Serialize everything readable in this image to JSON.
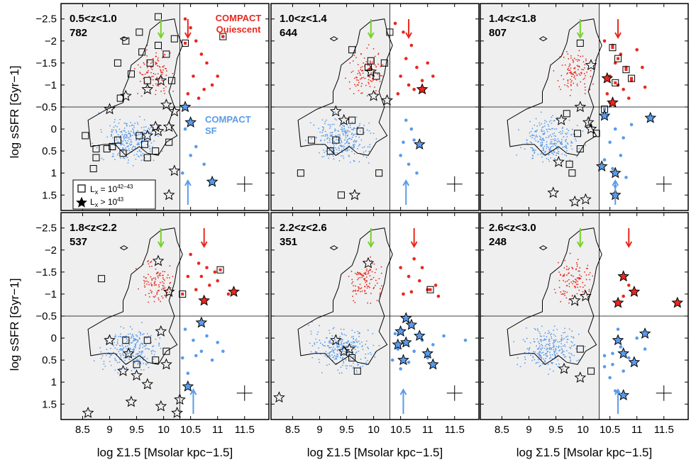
{
  "chart_data": {
    "type": "scatter",
    "xlabel": "log Σ1.5 [Msolar kpc−1.5]",
    "ylabel": "log sSFR [Gyr−1]",
    "xlim": [
      8.1,
      11.95
    ],
    "ylim": [
      -2.85,
      1.85
    ],
    "y_inverted": true,
    "x_ticks": [
      8.5,
      9,
      9.5,
      10,
      10.5,
      11,
      11.5
    ],
    "x_tick_labels": [
      "8.5",
      "9",
      "9.5",
      "10",
      "10.5",
      "11",
      "11.5"
    ],
    "y_ticks": [
      -2.5,
      -2,
      -1.5,
      -1,
      -0.5,
      0,
      0.5,
      1,
      1.5
    ],
    "y_tick_labels": [
      "−2.5",
      "−2",
      "−1.5",
      "−1",
      "−0.5",
      "0",
      "0.5",
      "1",
      "1.5"
    ],
    "compact_threshold_x": 10.3,
    "sf_threshold_y": -0.5,
    "colors": {
      "quiescent": "#e8281e",
      "sf": "#5a9bea",
      "green_arrow": "#7ad12a",
      "shade": "#efefef"
    },
    "annotations": {
      "quiescent_line1": "COMPACT",
      "quiescent_line2": "Quiescent",
      "sf_line1": "COMPACT",
      "sf_line2": "SF"
    },
    "legend": {
      "square_label": "L",
      "square_sub": "x",
      "square_value": " = 10",
      "square_exp": "42–43",
      "star_label": "L",
      "star_sub": "x",
      "star_value": " > 10",
      "star_exp": "43"
    },
    "panels": [
      {
        "z": "0.5<z<1.0",
        "n": "782",
        "green_arrow_x": 9.95,
        "red_arrow_x": 10.45,
        "blue_arrow_x": 10.45,
        "quiescent": [
          [
            10.4,
            -2.5
          ],
          [
            10.5,
            -2.3
          ],
          [
            10.6,
            -2.0
          ],
          [
            10.7,
            -1.7
          ],
          [
            10.8,
            -1.5
          ],
          [
            10.55,
            -1.2
          ],
          [
            10.9,
            -1.0
          ],
          [
            11.1,
            -2.1
          ],
          [
            10.45,
            -0.8
          ],
          [
            10.65,
            -0.7
          ],
          [
            10.75,
            -0.9
          ],
          [
            11.0,
            -1.2
          ]
        ],
        "sf": [
          [
            10.4,
            0.0
          ],
          [
            10.5,
            -0.2
          ],
          [
            10.6,
            0.4
          ],
          [
            10.75,
            0.8
          ],
          [
            10.35,
            1.0
          ],
          [
            10.5,
            0.6
          ]
        ],
        "squares": [
          [
            9.9,
            -2.55
          ],
          [
            9.55,
            -2.2
          ],
          [
            9.3,
            -2.0
          ],
          [
            9.6,
            -1.75
          ],
          [
            9.15,
            -1.5
          ],
          [
            9.75,
            -1.5
          ],
          [
            9.4,
            -1.25
          ],
          [
            10.2,
            -2.05
          ],
          [
            10.4,
            -1.95
          ],
          [
            9.9,
            -1.9
          ],
          [
            10.05,
            -1.7
          ],
          [
            9.7,
            -1.1
          ],
          [
            10.15,
            -1.1
          ],
          [
            9.2,
            -0.7
          ],
          [
            8.55,
            0.15
          ],
          [
            9.55,
            0.15
          ],
          [
            9.15,
            0.25
          ],
          [
            9.65,
            0.35
          ],
          [
            9.05,
            0.4
          ],
          [
            8.95,
            0.45
          ],
          [
            8.75,
            0.45
          ],
          [
            9.85,
            0.5
          ],
          [
            9.7,
            0.65
          ],
          [
            8.75,
            0.65
          ],
          [
            10.1,
            0.3
          ],
          [
            11.1,
            -2.1
          ],
          [
            8.7,
            0.9
          ],
          [
            9.25,
            0.55
          ]
        ],
        "stars": [
          [
            9.3,
            -0.75
          ],
          [
            9.7,
            -0.9
          ],
          [
            9.95,
            -1.1
          ],
          [
            10.05,
            -0.55
          ],
          [
            10.2,
            -0.4
          ],
          [
            10.4,
            -0.5
          ],
          [
            9.85,
            -0.05
          ],
          [
            10.1,
            -0.05
          ],
          [
            9.9,
            0.05
          ],
          [
            9.7,
            0.15
          ],
          [
            10.5,
            -0.15
          ],
          [
            10.2,
            0.95
          ],
          [
            10.1,
            1.5
          ],
          [
            10.9,
            1.2
          ],
          [
            9.0,
            -0.45
          ]
        ]
      },
      {
        "z": "1.0<z<1.4",
        "n": "644",
        "green_arrow_x": 9.95,
        "red_arrow_x": 10.65,
        "blue_arrow_x": 10.6,
        "quiescent": [
          [
            10.4,
            -2.4
          ],
          [
            10.55,
            -2.2
          ],
          [
            10.7,
            -1.9
          ],
          [
            10.6,
            -1.6
          ],
          [
            10.8,
            -1.4
          ],
          [
            10.5,
            -1.2
          ],
          [
            10.9,
            -1.1
          ],
          [
            11.1,
            -1.2
          ],
          [
            10.75,
            -0.9
          ],
          [
            10.45,
            -0.8
          ],
          [
            10.65,
            -1.0
          ],
          [
            11.0,
            -1.5
          ]
        ],
        "sf": [
          [
            10.6,
            -0.2
          ],
          [
            10.7,
            0.0
          ],
          [
            10.55,
            0.3
          ],
          [
            10.65,
            0.8
          ],
          [
            10.8,
            1.0
          ],
          [
            10.5,
            0.6
          ],
          [
            10.75,
            0.25
          ]
        ],
        "squares": [
          [
            9.9,
            -1.4
          ],
          [
            10.3,
            -2.2
          ],
          [
            9.6,
            -1.8
          ],
          [
            10.05,
            -1.2
          ],
          [
            10.2,
            -1.5
          ],
          [
            9.95,
            -1.55
          ],
          [
            9.6,
            -0.2
          ],
          [
            9.3,
            0.25
          ],
          [
            8.85,
            0.25
          ],
          [
            8.65,
            1.0
          ],
          [
            9.75,
            0.05
          ],
          [
            9.2,
            0.5
          ],
          [
            10.1,
            1.0
          ],
          [
            9.4,
            1.5
          ]
        ],
        "stars": [
          [
            10.0,
            -0.75
          ],
          [
            10.25,
            -0.65
          ],
          [
            10.9,
            -0.9
          ],
          [
            10.85,
            0.35
          ],
          [
            9.3,
            -0.4
          ],
          [
            9.45,
            -0.2
          ],
          [
            9.65,
            1.5
          ],
          [
            9.95,
            -1.3
          ]
        ]
      },
      {
        "z": "1.4<z<1.8",
        "n": "807",
        "green_arrow_x": 9.95,
        "red_arrow_x": 10.65,
        "blue_arrow_x": 10.6,
        "quiescent": [
          [
            10.4,
            -2.0
          ],
          [
            10.55,
            -1.9
          ],
          [
            10.7,
            -1.7
          ],
          [
            10.6,
            -1.5
          ],
          [
            10.8,
            -1.4
          ],
          [
            10.5,
            -1.2
          ],
          [
            10.9,
            -1.1
          ],
          [
            11.1,
            -1.4
          ],
          [
            10.75,
            -0.9
          ],
          [
            10.45,
            -0.8
          ],
          [
            10.65,
            -1.0
          ],
          [
            11.0,
            -1.8
          ],
          [
            10.5,
            -0.6
          ],
          [
            10.85,
            -0.7
          ],
          [
            11.15,
            -0.95
          ]
        ],
        "sf": [
          [
            10.45,
            -0.3
          ],
          [
            10.6,
            0.0
          ],
          [
            10.5,
            0.3
          ],
          [
            10.7,
            0.6
          ],
          [
            10.8,
            1.1
          ],
          [
            10.6,
            1.3
          ],
          [
            10.75,
            0.2
          ],
          [
            10.9,
            -0.1
          ],
          [
            10.4,
            0.7
          ],
          [
            10.55,
            0.9
          ]
        ],
        "squares": [
          [
            9.95,
            -1.95
          ],
          [
            10.55,
            -1.85
          ],
          [
            10.65,
            -1.6
          ],
          [
            10.8,
            -1.35
          ],
          [
            10.9,
            -1.15
          ],
          [
            10.6,
            -1.05
          ],
          [
            10.4,
            -0.45
          ],
          [
            9.7,
            -0.35
          ],
          [
            9.9,
            0.1
          ],
          [
            10.25,
            0.1
          ],
          [
            9.95,
            0.45
          ],
          [
            9.75,
            0.8
          ],
          [
            9.8,
            1.0
          ]
        ],
        "stars": [
          [
            10.15,
            -1.45
          ],
          [
            10.45,
            -1.15
          ],
          [
            10.55,
            -0.6
          ],
          [
            10.4,
            -0.3
          ],
          [
            10.1,
            -0.15
          ],
          [
            9.95,
            -0.5
          ],
          [
            9.6,
            -0.2
          ],
          [
            9.55,
            0.75
          ],
          [
            9.45,
            1.45
          ],
          [
            9.85,
            1.65
          ],
          [
            10.05,
            1.6
          ],
          [
            10.6,
            1.0
          ],
          [
            10.35,
            0.85
          ],
          [
            11.25,
            -0.25
          ],
          [
            10.15,
            0.0
          ],
          [
            10.6,
            1.5
          ]
        ]
      },
      {
        "z": "1.8<z<2.2",
        "n": "537",
        "green_arrow_x": 9.95,
        "red_arrow_x": 10.75,
        "blue_arrow_x": 10.55,
        "quiescent": [
          [
            10.5,
            -1.9
          ],
          [
            10.65,
            -1.7
          ],
          [
            10.8,
            -1.6
          ],
          [
            10.95,
            -1.5
          ],
          [
            10.7,
            -1.4
          ],
          [
            10.85,
            -1.2
          ],
          [
            11.0,
            -1.3
          ],
          [
            10.6,
            -1.1
          ],
          [
            10.45,
            -1.4
          ],
          [
            11.2,
            -1.0
          ]
        ],
        "sf": [
          [
            10.4,
            -0.2
          ],
          [
            10.55,
            0.05
          ],
          [
            10.7,
            0.3
          ],
          [
            10.9,
            0.5
          ],
          [
            10.45,
            0.8
          ],
          [
            10.6,
            0.4
          ],
          [
            10.8,
            -0.05
          ],
          [
            11.0,
            0.1
          ],
          [
            11.1,
            0.3
          ],
          [
            10.35,
            0.45
          ]
        ],
        "squares": [
          [
            8.85,
            -1.35
          ],
          [
            10.35,
            -1.0
          ],
          [
            11.05,
            -1.55
          ],
          [
            9.3,
            0.05
          ],
          [
            9.7,
            0.05
          ],
          [
            10.05,
            0.3
          ],
          [
            9.85,
            0.5
          ],
          [
            9.5,
            0.6
          ]
        ],
        "stars": [
          [
            9.9,
            -1.75
          ],
          [
            10.1,
            -1.05
          ],
          [
            10.75,
            -0.85
          ],
          [
            11.3,
            -1.05
          ],
          [
            9.0,
            0.05
          ],
          [
            9.35,
            0.35
          ],
          [
            9.95,
            -0.15
          ],
          [
            10.05,
            0.6
          ],
          [
            9.5,
            0.85
          ],
          [
            9.25,
            0.75
          ],
          [
            9.7,
            1.05
          ],
          [
            9.4,
            1.45
          ],
          [
            9.95,
            1.55
          ],
          [
            10.45,
            1.1
          ],
          [
            10.3,
            1.4
          ],
          [
            10.7,
            -0.35
          ],
          [
            8.6,
            1.7
          ],
          [
            10.25,
            1.7
          ]
        ]
      },
      {
        "z": "2.2<z<2.6",
        "n": "351",
        "green_arrow_x": 9.95,
        "red_arrow_x": 10.75,
        "blue_arrow_x": 10.55,
        "quiescent": [
          [
            10.5,
            -1.6
          ],
          [
            10.65,
            -1.4
          ],
          [
            10.85,
            -1.3
          ],
          [
            11.0,
            -1.1
          ],
          [
            10.7,
            -1.05
          ],
          [
            10.9,
            -1.6
          ],
          [
            11.15,
            -1.2
          ],
          [
            10.55,
            -1.0
          ],
          [
            10.75,
            -1.8
          ],
          [
            11.2,
            -0.95
          ]
        ],
        "sf": [
          [
            10.4,
            -0.1
          ],
          [
            10.6,
            0.1
          ],
          [
            10.75,
            0.3
          ],
          [
            10.9,
            0.05
          ],
          [
            11.0,
            0.45
          ],
          [
            10.5,
            0.7
          ],
          [
            10.65,
            0.55
          ],
          [
            11.1,
            0.15
          ],
          [
            11.3,
            -0.05
          ],
          [
            10.45,
            0.25
          ],
          [
            11.7,
            0.05
          ],
          [
            10.35,
            0.5
          ]
        ],
        "squares": [
          [
            11.05,
            -1.1
          ],
          [
            9.7,
            0.75
          ],
          [
            9.6,
            0.45
          ]
        ],
        "stars": [
          [
            9.9,
            -1.7
          ],
          [
            10.6,
            -0.45
          ],
          [
            10.7,
            -0.3
          ],
          [
            10.5,
            -0.15
          ],
          [
            10.45,
            0.15
          ],
          [
            10.6,
            0.1
          ],
          [
            10.55,
            0.5
          ],
          [
            10.85,
            -0.05
          ],
          [
            11.0,
            0.35
          ],
          [
            11.1,
            0.6
          ],
          [
            9.3,
            0.05
          ],
          [
            9.55,
            0.25
          ],
          [
            9.45,
            0.3
          ],
          [
            8.25,
            1.35
          ]
        ]
      },
      {
        "z": "2.6<z<3.0",
        "n": "248",
        "green_arrow_x": 9.95,
        "red_arrow_x": 10.85,
        "blue_arrow_x": 10.65,
        "quiescent": [
          [
            10.85,
            -1.2
          ],
          [
            10.75,
            -0.95
          ]
        ],
        "sf": [
          [
            10.4,
            0.4
          ],
          [
            10.55,
            0.6
          ],
          [
            10.7,
            0.2
          ],
          [
            10.85,
            0.45
          ],
          [
            11.0,
            0.0
          ],
          [
            10.5,
            0.9
          ],
          [
            10.6,
            1.2
          ],
          [
            10.75,
            0.75
          ],
          [
            10.4,
            0.65
          ],
          [
            10.95,
            0.55
          ],
          [
            10.65,
            -0.2
          ],
          [
            11.15,
            0.25
          ],
          [
            10.55,
            0.35
          ]
        ],
        "squares": [
          [
            9.95,
            0.25
          ],
          [
            10.15,
            0.75
          ]
        ],
        "stars": [
          [
            10.75,
            -1.4
          ],
          [
            10.95,
            -1.05
          ],
          [
            10.65,
            -0.8
          ],
          [
            11.75,
            -0.8
          ],
          [
            9.85,
            -0.85
          ],
          [
            10.05,
            -0.95
          ],
          [
            10.65,
            0.05
          ],
          [
            10.75,
            0.35
          ],
          [
            10.95,
            0.55
          ],
          [
            11.15,
            -0.1
          ],
          [
            9.65,
            0.7
          ],
          [
            9.95,
            0.9
          ],
          [
            10.75,
            1.3
          ]
        ]
      }
    ]
  }
}
